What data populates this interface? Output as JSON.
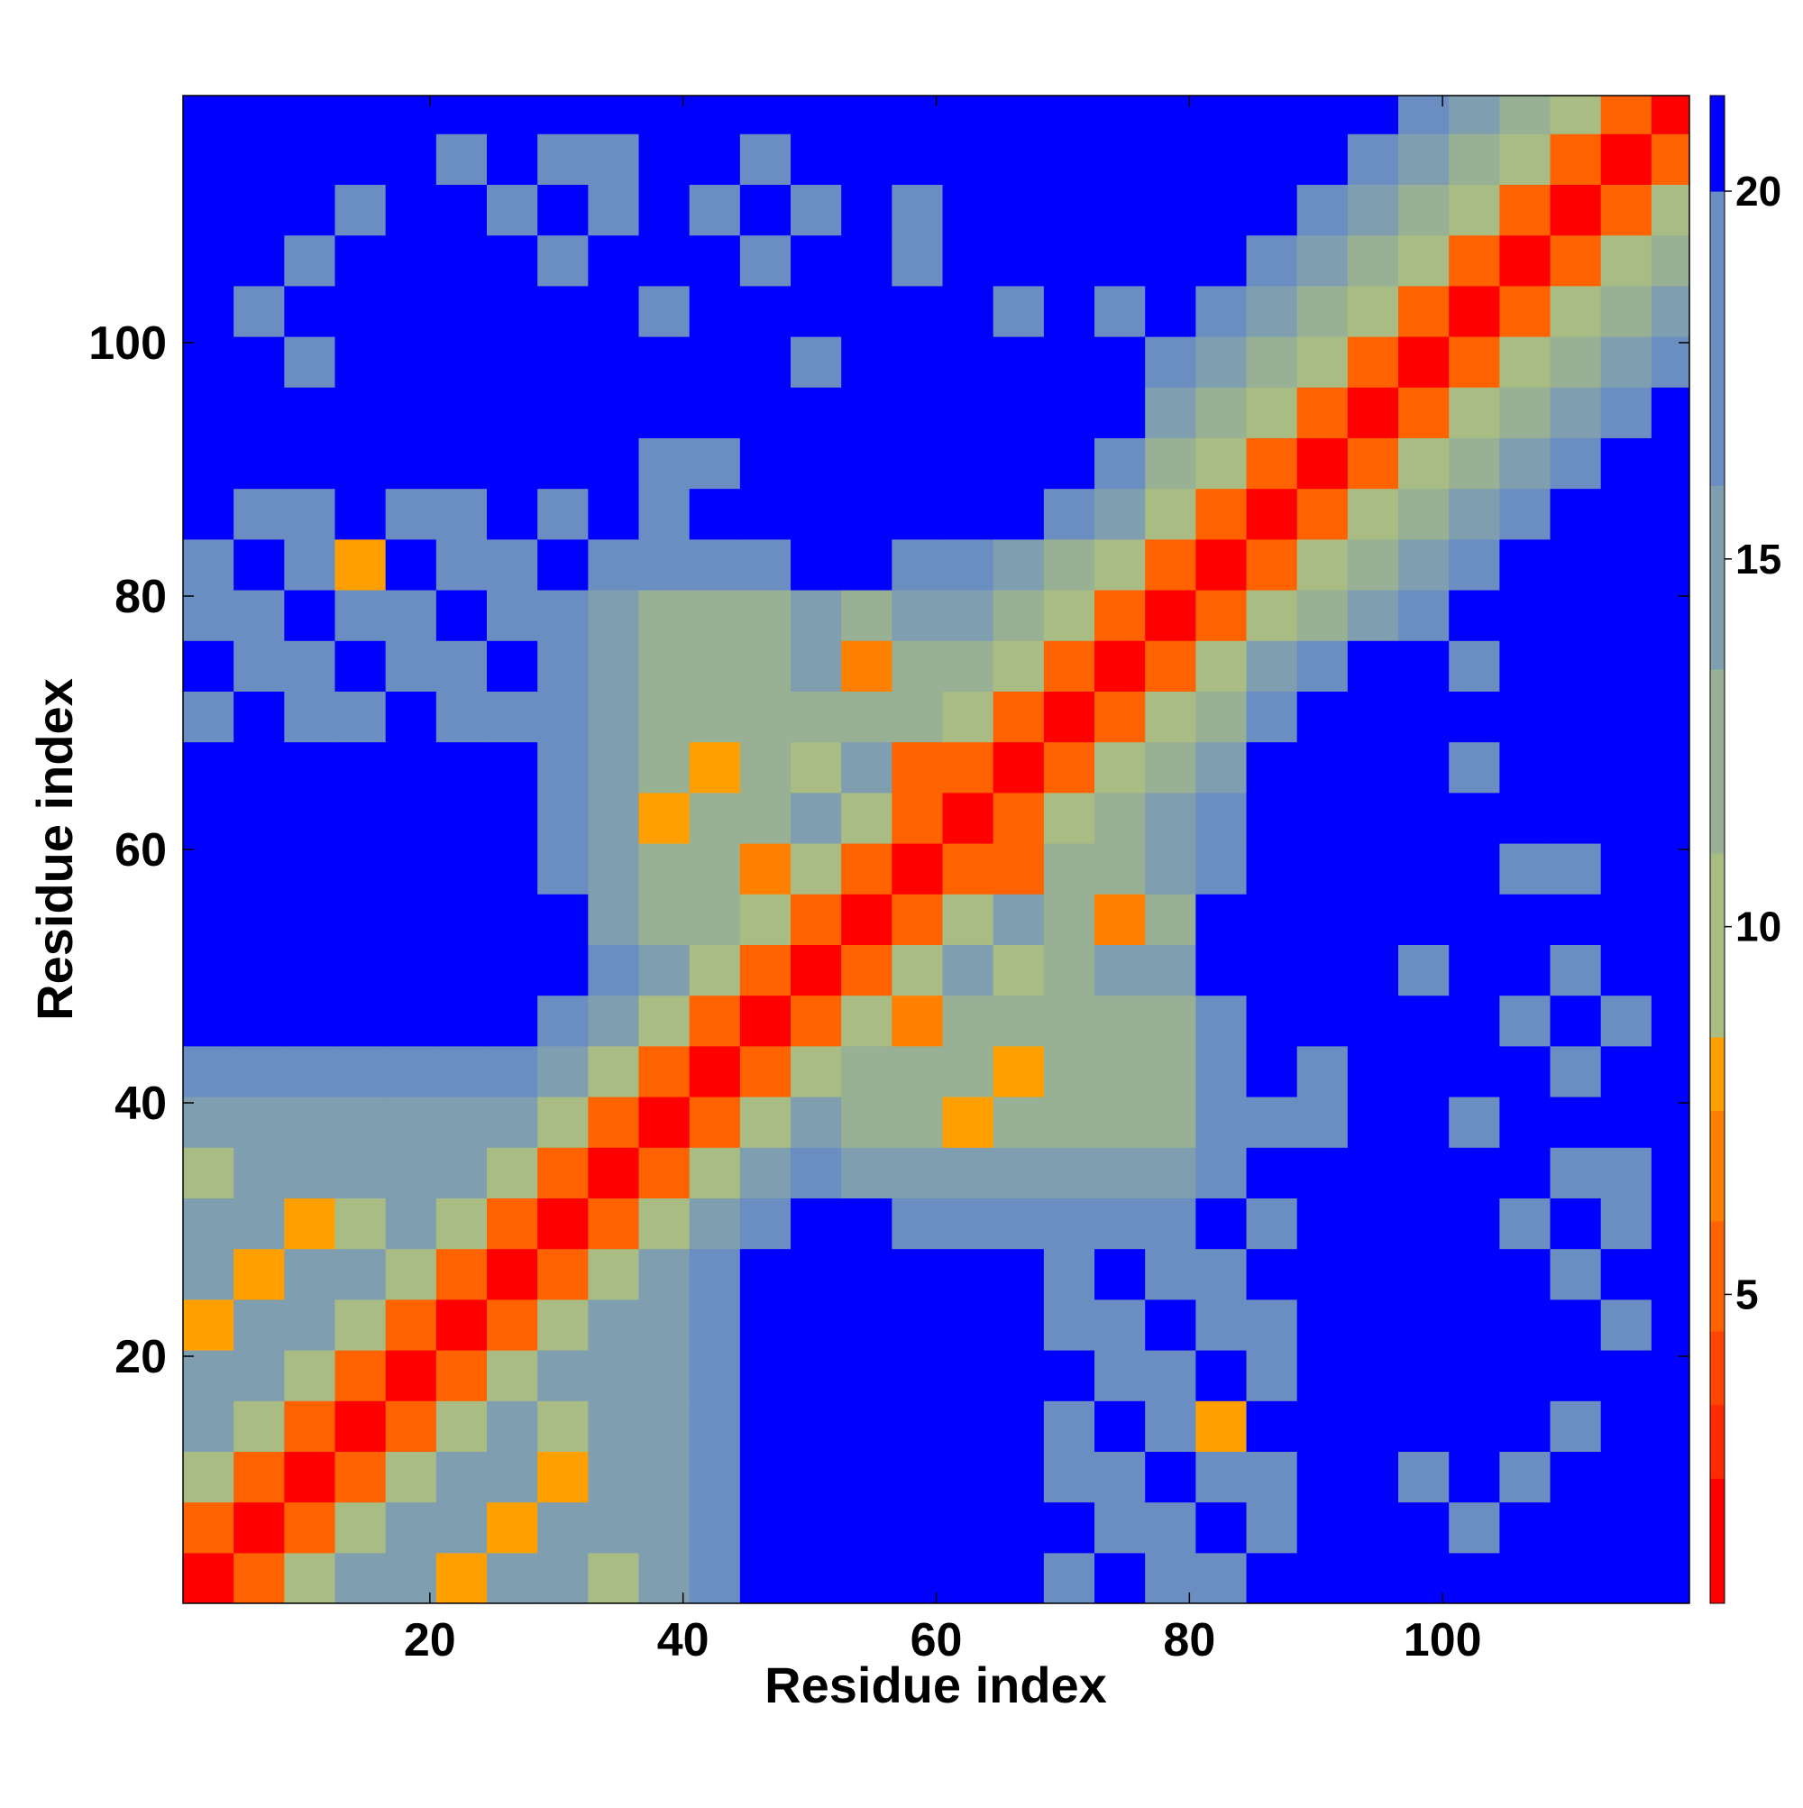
{
  "chart_data": {
    "type": "heatmap",
    "xlabel": "Residue index",
    "ylabel": "Residue index",
    "x": [
      2.5,
      6.5,
      10.5,
      14.5,
      18.5,
      22.5,
      26.5,
      30.5,
      34.5,
      38.5,
      42.5,
      46.5,
      50.5,
      54.5,
      58.5,
      62.5,
      66.5,
      70.5,
      74.5,
      78.5,
      82.5,
      86.5,
      90.5,
      94.5,
      98.5,
      102.5,
      106.5,
      110.5,
      114.5,
      118.5
    ],
    "y": [
      2.5,
      6.5,
      10.5,
      14.5,
      18.5,
      22.5,
      26.5,
      30.5,
      34.5,
      38.5,
      42.5,
      46.5,
      50.5,
      54.5,
      58.5,
      62.5,
      66.5,
      70.5,
      74.5,
      78.5,
      82.5,
      86.5,
      90.5,
      94.5,
      98.5,
      102.5,
      106.5,
      110.5,
      114.5,
      118.5
    ],
    "xlim": [
      0.5,
      119.5
    ],
    "ylim": [
      0.5,
      119.5
    ],
    "xticks": [
      20,
      40,
      60,
      80,
      100
    ],
    "yticks": [
      20,
      40,
      60,
      80,
      100
    ],
    "clim": [
      0.8,
      21.3
    ],
    "cticks": [
      5,
      10,
      15,
      20
    ],
    "color_levels": [
      0.8,
      2.5,
      3.5,
      4.5,
      6,
      7.5,
      8.5,
      11,
      13.5,
      16,
      20,
      21.3
    ],
    "colors": [
      "#ff0000",
      "#ff2a00",
      "#ff4500",
      "#ff6200",
      "#ff8000",
      "#ffa000",
      "#a8bc84",
      "#98b094",
      "#7f9fb0",
      "#6b8ec2",
      "#0000ff"
    ],
    "values": [
      [
        2,
        6,
        10,
        14,
        14,
        8,
        14,
        14,
        9,
        14,
        17,
        21,
        21,
        21,
        21,
        21,
        21,
        18,
        21,
        18,
        18,
        21,
        21,
        21,
        21,
        21,
        21,
        21,
        21,
        21
      ],
      [
        6,
        2,
        6,
        10,
        14,
        14,
        8,
        14,
        14,
        14,
        17,
        21,
        21,
        21,
        21,
        21,
        21,
        21,
        18,
        18,
        21,
        18,
        21,
        21,
        21,
        19,
        21,
        21,
        21,
        21
      ],
      [
        10,
        6,
        2,
        6,
        10,
        14,
        14,
        8,
        14,
        14,
        17,
        21,
        21,
        21,
        21,
        21,
        21,
        18,
        18,
        21,
        18,
        18,
        21,
        21,
        19,
        21,
        19,
        21,
        21,
        21
      ],
      [
        14,
        10,
        6,
        2,
        6,
        10,
        14,
        9,
        14,
        14,
        17,
        21,
        21,
        21,
        21,
        21,
        21,
        18,
        21,
        18,
        8,
        21,
        21,
        21,
        21,
        21,
        21,
        19,
        21,
        21
      ],
      [
        14,
        14,
        10,
        6,
        2,
        6,
        10,
        14,
        14,
        14,
        17,
        21,
        21,
        21,
        21,
        21,
        21,
        21,
        18,
        18,
        21,
        18,
        21,
        21,
        21,
        21,
        21,
        21,
        21,
        21
      ],
      [
        8,
        14,
        14,
        10,
        6,
        2,
        6,
        10,
        14,
        14,
        17,
        21,
        21,
        21,
        21,
        21,
        21,
        18,
        18,
        21,
        18,
        18,
        21,
        21,
        21,
        21,
        21,
        21,
        19,
        21
      ],
      [
        14,
        8,
        14,
        14,
        10,
        6,
        2,
        6,
        10,
        14,
        18,
        21,
        21,
        21,
        21,
        21,
        21,
        18,
        21,
        18,
        18,
        21,
        21,
        21,
        21,
        21,
        21,
        19,
        21,
        21
      ],
      [
        14,
        14,
        8,
        9,
        14,
        10,
        6,
        2,
        6,
        10,
        14,
        18,
        21,
        21,
        17,
        17,
        17,
        17,
        17,
        18,
        21,
        18,
        21,
        21,
        21,
        21,
        19,
        21,
        19,
        21
      ],
      [
        9,
        14,
        14,
        14,
        14,
        14,
        10,
        6,
        2,
        6,
        10,
        14,
        18,
        15,
        15,
        15,
        15,
        15,
        15,
        15,
        17,
        21,
        21,
        21,
        21,
        21,
        21,
        19,
        19,
        21
      ],
      [
        14,
        14,
        14,
        14,
        14,
        14,
        14,
        10,
        6,
        2,
        6,
        10,
        14,
        13,
        13,
        8,
        13,
        13,
        13,
        13,
        17,
        19,
        19,
        21,
        21,
        19,
        21,
        21,
        21,
        21
      ],
      [
        17,
        17,
        17,
        17,
        17,
        17,
        18,
        14,
        10,
        6,
        2,
        6,
        10,
        13,
        13,
        13,
        8,
        13,
        13,
        13,
        17,
        21,
        19,
        21,
        21,
        21,
        21,
        19,
        21,
        21
      ],
      [
        21,
        21,
        21,
        21,
        21,
        21,
        21,
        18,
        14,
        10,
        6,
        2,
        6,
        10,
        7,
        13,
        13,
        13,
        13,
        13,
        17,
        21,
        21,
        21,
        21,
        21,
        19,
        21,
        19,
        21
      ],
      [
        21,
        21,
        21,
        21,
        21,
        21,
        21,
        21,
        18,
        14,
        10,
        6,
        2,
        6,
        10,
        14,
        11,
        12,
        14,
        14,
        21,
        21,
        21,
        21,
        19,
        21,
        21,
        19,
        21,
        21
      ],
      [
        21,
        21,
        21,
        21,
        21,
        21,
        21,
        21,
        15,
        13,
        13,
        10,
        6,
        2,
        6,
        10,
        14,
        12,
        7,
        13,
        21,
        21,
        21,
        21,
        21,
        21,
        21,
        21,
        21,
        21
      ],
      [
        21,
        21,
        21,
        21,
        21,
        21,
        21,
        17,
        15,
        13,
        13,
        7,
        10,
        6,
        2,
        6,
        6,
        12,
        13,
        16,
        18,
        21,
        21,
        21,
        21,
        21,
        19,
        19,
        21,
        21
      ],
      [
        21,
        21,
        21,
        21,
        21,
        21,
        21,
        17,
        15,
        8,
        13,
        13,
        14,
        10,
        6,
        2,
        6,
        10,
        12,
        14,
        17,
        21,
        21,
        21,
        21,
        21,
        21,
        21,
        21,
        21
      ],
      [
        21,
        21,
        21,
        21,
        21,
        21,
        21,
        17,
        15,
        13,
        8,
        13,
        11,
        14,
        6,
        6,
        2,
        6,
        10,
        12,
        15,
        21,
        21,
        21,
        21,
        19,
        21,
        21,
        21,
        21
      ],
      [
        18,
        21,
        18,
        18,
        21,
        18,
        18,
        17,
        15,
        13,
        13,
        13,
        12,
        12,
        12,
        10,
        6,
        2,
        6,
        10,
        13,
        18,
        21,
        21,
        21,
        21,
        21,
        21,
        21,
        21
      ],
      [
        21,
        18,
        18,
        21,
        18,
        18,
        21,
        17,
        15,
        13,
        13,
        13,
        14,
        7,
        13,
        12,
        10,
        6,
        2,
        6,
        10,
        14,
        18,
        21,
        21,
        19,
        21,
        21,
        21,
        21
      ],
      [
        18,
        18,
        21,
        18,
        18,
        21,
        18,
        18,
        15,
        13,
        13,
        13,
        14,
        13,
        16,
        14,
        12,
        10,
        6,
        2,
        6,
        10,
        13,
        16,
        19,
        21,
        21,
        21,
        21,
        21
      ],
      [
        18,
        21,
        18,
        8,
        21,
        18,
        18,
        21,
        17,
        17,
        17,
        17,
        21,
        21,
        18,
        17,
        15,
        13,
        10,
        6,
        2,
        6,
        10,
        13,
        16,
        19,
        21,
        21,
        21,
        21
      ],
      [
        21,
        18,
        18,
        21,
        18,
        18,
        21,
        18,
        21,
        19,
        21,
        21,
        21,
        21,
        21,
        21,
        21,
        18,
        14,
        10,
        6,
        2,
        6,
        10,
        13,
        16,
        19,
        21,
        21,
        21
      ],
      [
        21,
        21,
        21,
        21,
        21,
        21,
        21,
        21,
        21,
        19,
        19,
        21,
        21,
        21,
        21,
        21,
        21,
        21,
        18,
        13,
        10,
        6,
        2,
        6,
        10,
        13,
        16,
        18,
        21,
        21
      ],
      [
        21,
        21,
        21,
        21,
        21,
        21,
        21,
        21,
        21,
        21,
        21,
        21,
        21,
        21,
        21,
        21,
        21,
        21,
        21,
        16,
        13,
        10,
        6,
        2,
        6,
        10,
        13,
        16,
        19,
        21
      ],
      [
        21,
        21,
        19,
        21,
        21,
        21,
        21,
        21,
        21,
        21,
        21,
        21,
        19,
        21,
        21,
        21,
        21,
        21,
        21,
        19,
        16,
        13,
        10,
        6,
        2,
        6,
        10,
        13,
        16,
        19
      ],
      [
        21,
        19,
        21,
        21,
        21,
        21,
        21,
        21,
        21,
        19,
        21,
        21,
        21,
        21,
        21,
        21,
        19,
        21,
        19,
        21,
        19,
        16,
        13,
        10,
        6,
        2,
        6,
        10,
        13,
        16
      ],
      [
        21,
        21,
        19,
        21,
        21,
        21,
        21,
        19,
        21,
        21,
        21,
        19,
        21,
        21,
        19,
        21,
        21,
        21,
        21,
        21,
        21,
        19,
        16,
        13,
        10,
        6,
        2,
        6,
        10,
        13
      ],
      [
        21,
        21,
        21,
        19,
        21,
        21,
        19,
        21,
        19,
        21,
        19,
        21,
        19,
        21,
        19,
        21,
        21,
        21,
        21,
        21,
        21,
        21,
        18,
        16,
        13,
        10,
        6,
        2,
        6,
        10
      ],
      [
        21,
        21,
        21,
        21,
        21,
        19,
        21,
        19,
        19,
        21,
        21,
        19,
        21,
        21,
        21,
        21,
        21,
        21,
        21,
        21,
        21,
        21,
        21,
        19,
        16,
        13,
        10,
        6,
        2,
        6
      ],
      [
        21,
        21,
        21,
        21,
        21,
        21,
        21,
        21,
        21,
        21,
        21,
        21,
        21,
        21,
        21,
        21,
        21,
        21,
        21,
        21,
        21,
        21,
        21,
        21,
        19,
        16,
        13,
        10,
        6,
        2
      ]
    ]
  }
}
